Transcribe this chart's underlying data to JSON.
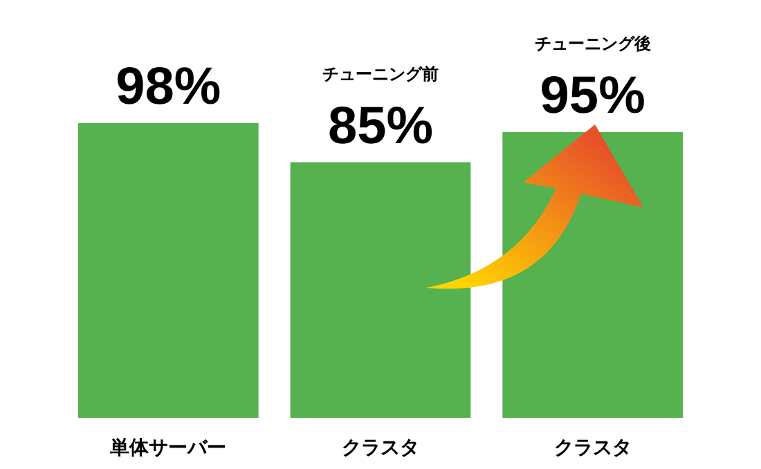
{
  "chart_data": {
    "type": "bar",
    "categories": [
      "単体サーバー",
      "クラスタ",
      "クラスタ"
    ],
    "values": [
      98,
      85,
      95
    ],
    "color": "#55b24f",
    "value_labels": [
      "98%",
      "85%",
      "95%"
    ],
    "annotations": [
      "チューニング前",
      "チューニング後"
    ]
  }
}
